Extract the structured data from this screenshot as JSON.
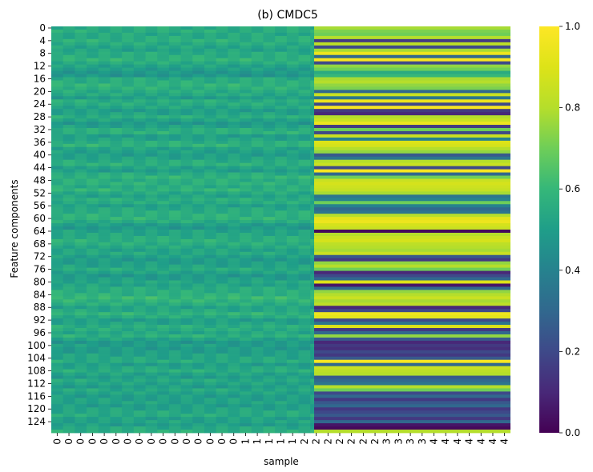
{
  "chart_data": {
    "type": "heatmap",
    "title": "(b) CMDC5",
    "xlabel": "sample",
    "ylabel": "Feature components",
    "n_rows": 128,
    "x_tick_labels": [
      "0",
      "0",
      "0",
      "0",
      "0",
      "0",
      "0",
      "0",
      "0",
      "0",
      "0",
      "0",
      "0",
      "0",
      "0",
      "0",
      "1",
      "1",
      "1",
      "1",
      "1",
      "2",
      "2",
      "2",
      "2",
      "2",
      "2",
      "2",
      "3",
      "3",
      "3",
      "3",
      "4",
      "4",
      "4",
      "4",
      "4",
      "4",
      "4"
    ],
    "y_tick_labels": [
      "0",
      "4",
      "8",
      "12",
      "16",
      "20",
      "24",
      "28",
      "32",
      "36",
      "40",
      "44",
      "48",
      "52",
      "56",
      "60",
      "64",
      "68",
      "72",
      "76",
      "80",
      "84",
      "88",
      "92",
      "96",
      "100",
      "104",
      "108",
      "112",
      "116",
      "120",
      "124"
    ],
    "colorbar": {
      "colormap": "viridis",
      "range": [
        0.0,
        1.0
      ],
      "tick_labels": [
        "0.0",
        "0.2",
        "0.4",
        "0.6",
        "0.8",
        "1.0"
      ]
    },
    "notes_visible": "Left block (about samples 0-1) uniform teal ~0.5-0.6; right block (samples 1-4) horizontal stripes ranging from dark purple ~0.05 to yellow ~1.0",
    "band_profile": [
      0.78,
      0.72,
      0.7,
      0.8,
      0.15,
      0.82,
      0.2,
      0.78,
      0.95,
      0.3,
      0.98,
      0.2,
      0.75,
      0.7,
      0.55,
      0.6,
      0.78,
      0.8,
      0.75,
      0.72,
      0.3,
      0.85,
      0.35,
      0.95,
      0.2,
      0.98,
      0.15,
      0.1,
      0.8,
      0.85,
      0.95,
      0.15,
      0.7,
      0.2,
      0.85,
      0.4,
      0.9,
      0.88,
      0.8,
      0.75,
      0.25,
      0.35,
      0.8,
      0.85,
      0.2,
      0.98,
      0.3,
      0.7,
      0.85,
      0.88,
      0.86,
      0.84,
      0.78,
      0.35,
      0.4,
      0.7,
      0.4,
      0.3,
      0.35,
      0.8,
      0.92,
      0.95,
      0.88,
      0.85,
      0.02,
      0.8,
      0.85,
      0.88,
      0.82,
      0.8,
      0.78,
      0.85,
      0.25,
      0.15,
      0.75,
      0.8,
      0.7,
      0.1,
      0.2,
      0.3,
      0.9,
      0.05,
      0.3,
      0.75,
      0.8,
      0.85,
      0.78,
      0.82,
      0.1,
      0.2,
      0.95,
      0.92,
      0.2,
      0.35,
      0.9,
      0.15,
      0.3,
      0.75,
      0.25,
      0.1,
      0.15,
      0.12,
      0.2,
      0.15,
      0.25,
      0.98,
      0.3,
      0.85,
      0.82,
      0.8,
      0.25,
      0.3,
      0.35,
      0.8,
      0.7,
      0.2,
      0.3,
      0.15,
      0.25,
      0.3,
      0.15,
      0.2,
      0.25,
      0.15,
      0.3,
      0.05,
      0.02,
      0.8
    ],
    "left_profile": [
      0.55,
      0.56,
      0.54,
      0.55,
      0.57,
      0.55,
      0.53,
      0.52,
      0.55,
      0.56,
      0.58,
      0.55,
      0.52,
      0.5,
      0.48,
      0.47,
      0.55,
      0.56,
      0.58,
      0.57,
      0.55,
      0.54,
      0.5,
      0.56,
      0.55,
      0.53,
      0.5,
      0.52,
      0.56,
      0.52,
      0.48,
      0.51,
      0.56,
      0.57,
      0.5,
      0.52,
      0.56,
      0.58,
      0.52,
      0.51,
      0.5,
      0.52,
      0.55,
      0.57,
      0.52,
      0.5,
      0.55,
      0.58,
      0.56,
      0.57,
      0.55,
      0.58,
      0.54,
      0.52,
      0.56,
      0.55,
      0.51,
      0.54,
      0.56,
      0.57,
      0.58,
      0.55,
      0.5,
      0.48,
      0.52,
      0.53,
      0.55,
      0.57,
      0.56,
      0.54,
      0.52,
      0.54,
      0.51,
      0.49,
      0.5,
      0.52,
      0.55,
      0.52,
      0.48,
      0.5,
      0.53,
      0.52,
      0.55,
      0.56,
      0.57,
      0.6,
      0.58,
      0.56,
      0.52,
      0.54,
      0.58,
      0.55,
      0.5,
      0.52,
      0.56,
      0.55,
      0.53,
      0.57,
      0.52,
      0.48,
      0.5,
      0.49,
      0.5,
      0.52,
      0.53,
      0.55,
      0.5,
      0.53,
      0.56,
      0.52,
      0.5,
      0.54,
      0.52,
      0.5,
      0.54,
      0.52,
      0.5,
      0.51,
      0.52,
      0.5,
      0.52,
      0.54,
      0.55,
      0.51,
      0.52,
      0.5,
      0.54,
      0.56
    ]
  }
}
